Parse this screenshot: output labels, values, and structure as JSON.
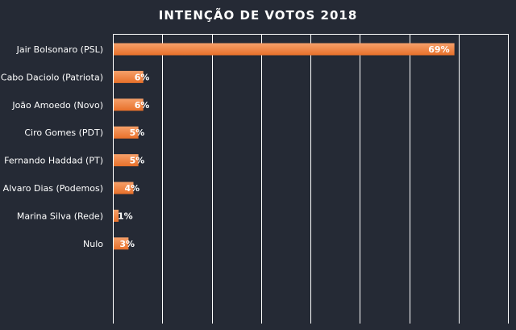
{
  "chart_data": {
    "type": "bar",
    "orientation": "horizontal",
    "title": "INTENÇÃO  DE VOTOS 2018",
    "categories": [
      "Jair Bolsonaro (PSL)",
      "Cabo Daciolo (Patriota)",
      "João Amoedo (Novo)",
      "Ciro Gomes (PDT)",
      "Fernando Haddad (PT)",
      "Alvaro Dias (Podemos)",
      "Marina Silva (Rede)",
      "Nulo"
    ],
    "values": [
      69,
      6,
      6,
      5,
      5,
      4,
      1,
      3
    ],
    "value_labels": [
      "69%",
      "6%",
      "6%",
      "5%",
      "5%",
      "4%",
      "1%",
      "3%"
    ],
    "xlim": [
      0,
      80
    ],
    "grid": true,
    "legend": "none",
    "colors": {
      "background": "#252a35",
      "bar_top": "#f6a06a",
      "bar_bottom": "#e8702a",
      "text": "#ffffff",
      "grid": "#ffffff"
    }
  }
}
